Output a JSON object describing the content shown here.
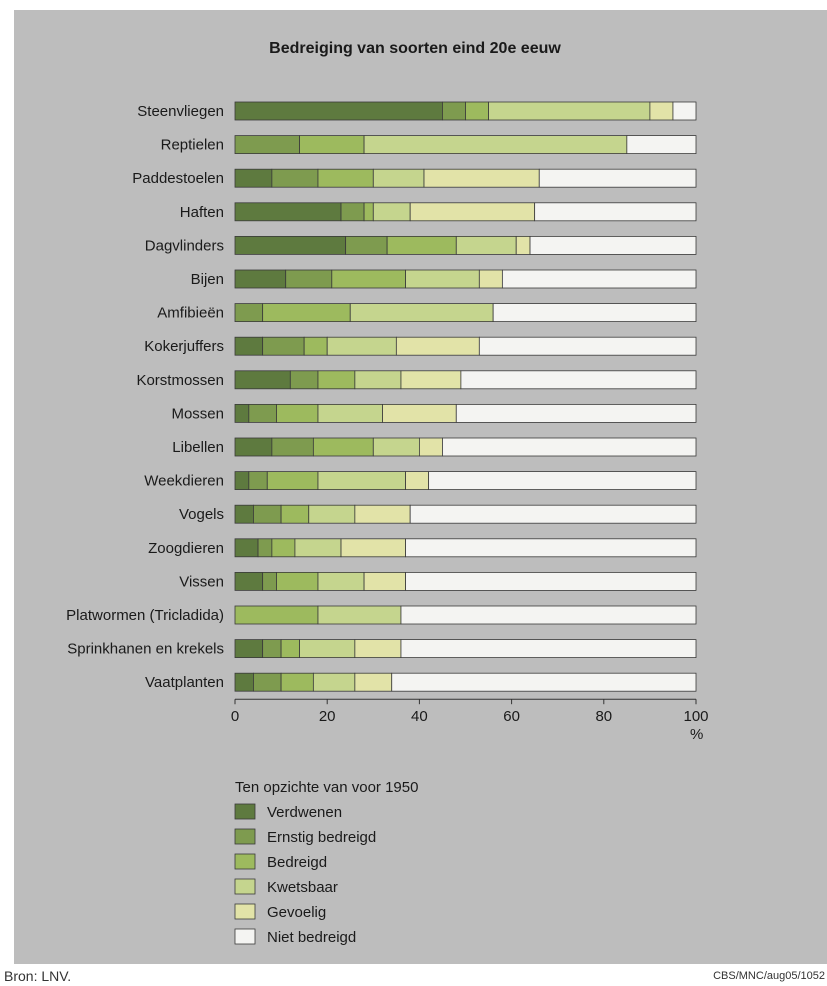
{
  "chart_data": {
    "type": "bar",
    "orientation": "horizontal",
    "stacked": true,
    "title": "Bedreiging van soorten eind 20e eeuw",
    "categories": [
      "Steenvliegen",
      "Reptielen",
      "Paddestoelen",
      "Haften",
      "Dagvlinders",
      "Bijen",
      "Amfibieën",
      "Kokerjuffers",
      "Korstmossen",
      "Mossen",
      "Libellen",
      "Weekdieren",
      "Vogels",
      "Zoogdieren",
      "Vissen",
      "Platwormen (Tricladida)",
      "Sprinkhanen en krekels",
      "Vaatplanten"
    ],
    "series": [
      {
        "name": "Verdwenen",
        "color": "#5e7a3f",
        "values": [
          45,
          0,
          8,
          23,
          24,
          11,
          0,
          6,
          12,
          3,
          8,
          3,
          4,
          5,
          6,
          0,
          6,
          4
        ]
      },
      {
        "name": "Ernstig bedreigd",
        "color": "#7e9b4f",
        "values": [
          5,
          14,
          10,
          5,
          9,
          10,
          6,
          9,
          6,
          6,
          9,
          4,
          6,
          3,
          3,
          0,
          4,
          6
        ]
      },
      {
        "name": "Bedreigd",
        "color": "#9dba5e",
        "values": [
          5,
          14,
          12,
          2,
          15,
          16,
          19,
          5,
          8,
          9,
          13,
          11,
          6,
          5,
          9,
          18,
          4,
          7
        ]
      },
      {
        "name": "Kwetsbaar",
        "color": "#c5d58e",
        "values": [
          35,
          57,
          11,
          8,
          13,
          16,
          31,
          15,
          10,
          14,
          10,
          19,
          10,
          10,
          10,
          18,
          12,
          9
        ]
      },
      {
        "name": "Gevoelig",
        "color": "#e2e3a8",
        "values": [
          5,
          0,
          25,
          27,
          3,
          5,
          0,
          18,
          13,
          16,
          5,
          5,
          12,
          14,
          9,
          0,
          10,
          8
        ]
      },
      {
        "name": "Niet bedreigd",
        "color": "#f4f4f2",
        "values": [
          5,
          15,
          34,
          35,
          36,
          42,
          44,
          47,
          51,
          52,
          55,
          58,
          62,
          63,
          63,
          64,
          64,
          66
        ]
      }
    ],
    "xlim": [
      0,
      100
    ],
    "xticks": [
      0,
      20,
      40,
      60,
      80,
      100
    ],
    "xunit": "%",
    "legend": {
      "title": "Ten opzichte van voor 1950",
      "placement": "bottom"
    }
  },
  "footer": {
    "source": "Bron: LNV.",
    "code": "CBS/MNC/aug05/1052"
  }
}
